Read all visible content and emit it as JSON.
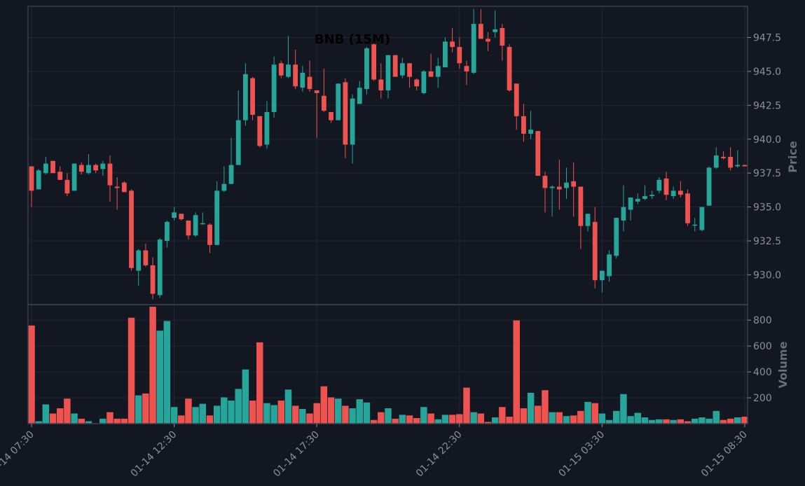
{
  "chart_data": {
    "type": "candlestick",
    "title": "BNB (15M)",
    "price_axis_label": "Price",
    "volume_axis_label": "Volume",
    "price_ylim": [
      927.8,
      949.8
    ],
    "volume_ylim": [
      0,
      920
    ],
    "price_ticks": [
      "930.0",
      "932.5",
      "935.0",
      "937.5",
      "940.0",
      "942.5",
      "945.0",
      "947.5"
    ],
    "volume_ticks": [
      "200",
      "400",
      "600",
      "800"
    ],
    "x_tick_labels": [
      {
        "index": 0,
        "label": "01-14 07:30"
      },
      {
        "index": 20,
        "label": "01-14 12:30"
      },
      {
        "index": 40,
        "label": "01-14 17:30"
      },
      {
        "index": 60,
        "label": "01-14 22:30"
      },
      {
        "index": 80,
        "label": "01-15 03:30"
      },
      {
        "index": 100,
        "label": "01-15 08:30"
      }
    ],
    "colors": {
      "up": "#26a69a",
      "down": "#ef5350",
      "background": "#131722",
      "grid": "#232733",
      "text": "#8c8f99"
    },
    "candles": [
      [
        938.0,
        938.0,
        935.0,
        936.2,
        760
      ],
      [
        936.3,
        937.8,
        936.3,
        937.7,
        20
      ],
      [
        937.5,
        938.7,
        937.4,
        938.2,
        150
      ],
      [
        938.4,
        938.4,
        937.5,
        937.5,
        80
      ],
      [
        937.6,
        938.0,
        937.0,
        937.0,
        120
      ],
      [
        937.0,
        937.5,
        935.8,
        936.0,
        195
      ],
      [
        936.2,
        938.2,
        936.2,
        938.2,
        80
      ],
      [
        938.1,
        938.3,
        937.4,
        937.6,
        40
      ],
      [
        937.5,
        938.9,
        937.4,
        938.1,
        20
      ],
      [
        938.1,
        938.2,
        937.5,
        937.7,
        5
      ],
      [
        937.8,
        938.4,
        937.3,
        938.2,
        40
      ],
      [
        938.2,
        938.8,
        935.4,
        936.6,
        90
      ],
      [
        936.5,
        937.2,
        934.8,
        936.4,
        40
      ],
      [
        936.8,
        936.9,
        936.1,
        936.1,
        40
      ],
      [
        936.2,
        936.3,
        930.3,
        930.5,
        820
      ],
      [
        930.3,
        931.9,
        929.2,
        931.8,
        220
      ],
      [
        931.8,
        932.3,
        930.6,
        930.7,
        235
      ],
      [
        930.7,
        931.3,
        928.2,
        928.6,
        905
      ],
      [
        928.5,
        932.7,
        928.3,
        932.6,
        720
      ],
      [
        932.5,
        934.0,
        932.0,
        933.9,
        795
      ],
      [
        934.2,
        935.0,
        934.0,
        934.6,
        130
      ],
      [
        934.5,
        934.5,
        934.0,
        934.1,
        65
      ],
      [
        934.0,
        934.0,
        932.6,
        932.9,
        195
      ],
      [
        932.9,
        934.6,
        932.8,
        934.4,
        130
      ],
      [
        933.8,
        934.6,
        933.7,
        933.8,
        155
      ],
      [
        933.7,
        933.8,
        931.6,
        932.2,
        65
      ],
      [
        932.2,
        936.9,
        932.2,
        936.2,
        140
      ],
      [
        936.2,
        938.0,
        936.1,
        936.7,
        205
      ],
      [
        936.7,
        940.1,
        936.7,
        938.1,
        180
      ],
      [
        938.1,
        943.6,
        938.1,
        941.4,
        270
      ],
      [
        941.4,
        945.6,
        941.0,
        944.8,
        420
      ],
      [
        944.5,
        944.6,
        941.4,
        941.8,
        180
      ],
      [
        941.7,
        941.7,
        939.4,
        939.5,
        630
      ],
      [
        939.6,
        942.8,
        939.3,
        942.0,
        160
      ],
      [
        942.0,
        946.1,
        941.6,
        945.5,
        145
      ],
      [
        945.6,
        945.8,
        944.5,
        944.7,
        180
      ],
      [
        944.6,
        947.6,
        944.5,
        945.5,
        265
      ],
      [
        945.5,
        946.6,
        943.7,
        943.9,
        140
      ],
      [
        943.8,
        945.4,
        943.5,
        944.9,
        115
      ],
      [
        944.6,
        945.8,
        943.5,
        943.7,
        80
      ],
      [
        943.6,
        943.6,
        940.1,
        943.4,
        160
      ],
      [
        943.2,
        945.2,
        942.0,
        942.1,
        290
      ],
      [
        942.0,
        942.0,
        941.2,
        941.4,
        205
      ],
      [
        941.4,
        944.1,
        941.4,
        944.1,
        195
      ],
      [
        944.2,
        944.5,
        938.6,
        939.6,
        140
      ],
      [
        939.6,
        943.3,
        938.2,
        943.0,
        120
      ],
      [
        942.6,
        944.3,
        942.6,
        943.8,
        190
      ],
      [
        943.7,
        946.8,
        943.3,
        946.7,
        165
      ],
      [
        947.0,
        947.3,
        944.3,
        944.4,
        30
      ],
      [
        944.4,
        945.6,
        943.0,
        943.6,
        90
      ],
      [
        943.6,
        946.2,
        943.0,
        946.2,
        120
      ],
      [
        946.2,
        946.2,
        944.7,
        944.6,
        40
      ],
      [
        944.7,
        946.0,
        944.5,
        945.6,
        70
      ],
      [
        945.6,
        945.6,
        943.8,
        944.6,
        65
      ],
      [
        944.4,
        944.5,
        943.6,
        943.9,
        45
      ],
      [
        943.4,
        945.1,
        943.3,
        945.0,
        130
      ],
      [
        945.0,
        946.3,
        944.8,
        944.6,
        80
      ],
      [
        944.6,
        946.0,
        943.8,
        945.4,
        35
      ],
      [
        945.3,
        947.5,
        945.3,
        947.2,
        70
      ],
      [
        947.2,
        948.2,
        946.4,
        946.8,
        70
      ],
      [
        946.8,
        947.5,
        945.2,
        945.6,
        75
      ],
      [
        945.4,
        945.8,
        944.0,
        945.0,
        280
      ],
      [
        944.9,
        949.6,
        944.8,
        948.5,
        90
      ],
      [
        948.5,
        949.6,
        947.4,
        947.4,
        80
      ],
      [
        947.4,
        947.9,
        946.5,
        947.2,
        15
      ],
      [
        947.9,
        949.5,
        947.5,
        948.1,
        50
      ],
      [
        948.2,
        948.5,
        945.8,
        946.9,
        130
      ],
      [
        946.8,
        947.0,
        943.5,
        943.6,
        55
      ],
      [
        944.1,
        944.1,
        940.7,
        941.7,
        800
      ],
      [
        941.7,
        942.6,
        939.8,
        940.4,
        120
      ],
      [
        940.4,
        942.1,
        940.0,
        940.7,
        240
      ],
      [
        940.6,
        940.6,
        937.3,
        937.3,
        140
      ],
      [
        937.3,
        937.6,
        934.6,
        936.4,
        260
      ],
      [
        936.4,
        936.6,
        934.3,
        936.5,
        90
      ],
      [
        936.5,
        938.5,
        934.8,
        936.3,
        90
      ],
      [
        936.4,
        937.9,
        935.6,
        936.8,
        60
      ],
      [
        936.9,
        938.3,
        934.3,
        936.5,
        65
      ],
      [
        936.5,
        936.5,
        931.9,
        933.6,
        100
      ],
      [
        933.6,
        934.5,
        933.2,
        934.5,
        170
      ],
      [
        933.9,
        935.0,
        929.0,
        929.6,
        160
      ],
      [
        929.6,
        930.3,
        928.7,
        930.3,
        80
      ],
      [
        929.9,
        931.8,
        929.5,
        931.5,
        30
      ],
      [
        931.4,
        934.2,
        931.2,
        934.2,
        100
      ],
      [
        934.0,
        936.6,
        933.2,
        935.0,
        230
      ],
      [
        934.8,
        935.7,
        934.0,
        935.7,
        60
      ],
      [
        935.4,
        936.0,
        935.2,
        935.6,
        85
      ],
      [
        935.6,
        936.6,
        935.5,
        935.8,
        50
      ],
      [
        935.8,
        936.2,
        935.6,
        935.9,
        30
      ],
      [
        936.2,
        937.2,
        936.0,
        937.0,
        35
      ],
      [
        937.1,
        937.6,
        935.5,
        935.9,
        35
      ],
      [
        935.8,
        936.5,
        935.6,
        936.2,
        30
      ],
      [
        936.2,
        936.9,
        935.7,
        935.9,
        35
      ],
      [
        936.0,
        936.3,
        933.6,
        933.8,
        20
      ],
      [
        933.7,
        934.2,
        933.2,
        933.7,
        40
      ],
      [
        933.3,
        935.0,
        933.2,
        935.0,
        50
      ],
      [
        935.1,
        938.0,
        935.1,
        937.9,
        40
      ],
      [
        937.9,
        939.4,
        937.8,
        938.8,
        100
      ],
      [
        938.7,
        939.1,
        938.5,
        938.6,
        30
      ],
      [
        938.7,
        939.4,
        937.7,
        937.9,
        40
      ],
      [
        938.0,
        939.2,
        937.9,
        938.1,
        50
      ],
      [
        938.1,
        938.1,
        938.0,
        938.0,
        55
      ]
    ]
  }
}
